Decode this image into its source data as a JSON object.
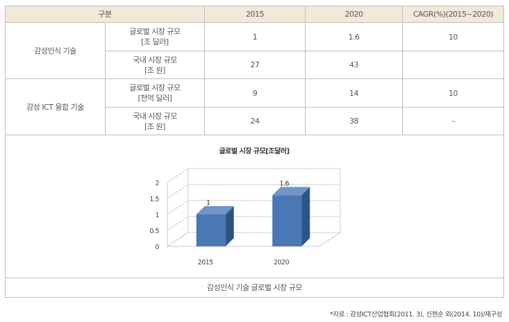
{
  "table": {
    "headers": [
      "구분",
      "2015",
      "2020",
      "CAGR(%)(2015~2020)"
    ],
    "groups": [
      {
        "name": "감성인식 기술",
        "rows": [
          {
            "item_line1": "글로벌 시장 규모",
            "item_line2": "[조 달러]",
            "v2015": "1",
            "v2020": "1.6",
            "cagr": "10"
          },
          {
            "item_line1": "국내 시장 규모",
            "item_line2": "[조 원]",
            "v2015": "27",
            "v2020": "43",
            "cagr": ""
          }
        ]
      },
      {
        "name": "감성 ICT 융합 기술",
        "rows": [
          {
            "item_line1": "글로벌 시장 규모",
            "item_line2": "[천억 달러]",
            "v2015": "9",
            "v2020": "14",
            "cagr": "10"
          },
          {
            "item_line1": "국내 시장 규모",
            "item_line2": "[조 원]",
            "v2015": "24",
            "v2020": "38",
            "cagr": "–"
          }
        ]
      }
    ]
  },
  "chart_data": {
    "type": "bar",
    "title": "글로벌 시장 규모[조달러]",
    "categories": [
      "2015",
      "2020"
    ],
    "values": [
      1,
      1.6
    ],
    "data_labels": [
      "1",
      "1.6"
    ],
    "ylim": [
      0,
      2
    ],
    "yticks": [
      "0",
      "0.5",
      "1",
      "1.5",
      "2"
    ],
    "grid": true,
    "bar_color": "#4a78b5"
  },
  "caption": "감성인식 기술 글로벌 시장 규모",
  "source": "*자료 : 감성ICT산업협회(2011. 3), 신현순 외(2014. 10)/재구성"
}
